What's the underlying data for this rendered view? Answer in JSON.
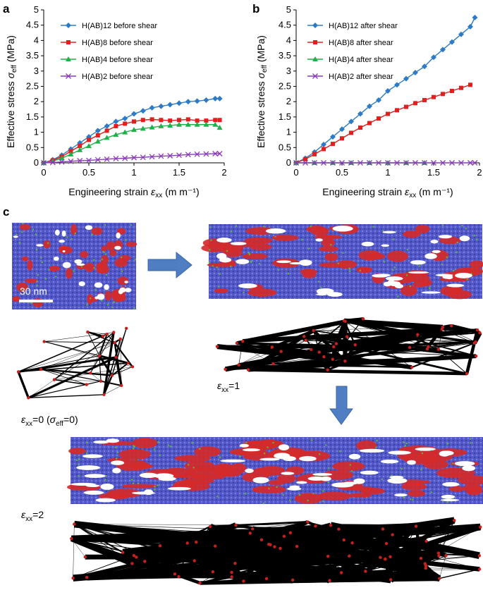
{
  "chart_data": [
    {
      "type": "line",
      "panel_label": "a",
      "xlabel": "Engineering strain",
      "xlabel_symbol": "ε",
      "xlabel_sub": "xx",
      "xlabel_unit": "(m m⁻¹)",
      "ylabel": "Effective stress",
      "ylabel_symbol": "σ",
      "ylabel_sub": "eff",
      "ylabel_unit": "(MPa)",
      "xlim": [
        0,
        2
      ],
      "ylim": [
        0,
        5
      ],
      "xticks": [
        "0",
        "0.5",
        "1",
        "1.5",
        "2"
      ],
      "yticks": [
        "0",
        "0.5",
        "1",
        "1.5",
        "2",
        "2.5",
        "3",
        "3.5",
        "4",
        "4.5",
        "5"
      ],
      "legend_position": "top-left",
      "series": [
        {
          "name": "H(AB)12 before shear",
          "color": "#2d7bc4",
          "marker": "diamond",
          "x": [
            0,
            0.1,
            0.2,
            0.3,
            0.4,
            0.5,
            0.6,
            0.7,
            0.8,
            0.9,
            1.0,
            1.1,
            1.2,
            1.3,
            1.4,
            1.5,
            1.6,
            1.7,
            1.8,
            1.9,
            1.95
          ],
          "y": [
            0,
            0.1,
            0.25,
            0.45,
            0.65,
            0.85,
            1.05,
            1.2,
            1.35,
            1.45,
            1.6,
            1.7,
            1.8,
            1.85,
            1.9,
            1.95,
            2.0,
            2.02,
            2.05,
            2.1,
            2.1
          ]
        },
        {
          "name": "H(AB)8 before shear",
          "color": "#e0201f",
          "marker": "square",
          "x": [
            0,
            0.1,
            0.2,
            0.3,
            0.4,
            0.5,
            0.6,
            0.7,
            0.8,
            0.9,
            1.0,
            1.1,
            1.2,
            1.3,
            1.4,
            1.5,
            1.6,
            1.7,
            1.8,
            1.9,
            1.95
          ],
          "y": [
            0,
            0.08,
            0.2,
            0.38,
            0.55,
            0.75,
            0.9,
            1.05,
            1.2,
            1.28,
            1.35,
            1.4,
            1.42,
            1.4,
            1.38,
            1.4,
            1.42,
            1.38,
            1.38,
            1.4,
            1.4
          ]
        },
        {
          "name": "H(AB)4 before shear",
          "color": "#1fb04a",
          "marker": "triangle",
          "x": [
            0,
            0.1,
            0.2,
            0.3,
            0.4,
            0.5,
            0.6,
            0.7,
            0.8,
            0.9,
            1.0,
            1.1,
            1.2,
            1.3,
            1.4,
            1.5,
            1.6,
            1.7,
            1.8,
            1.9,
            1.95
          ],
          "y": [
            0,
            0.05,
            0.15,
            0.28,
            0.42,
            0.55,
            0.7,
            0.82,
            0.92,
            1.0,
            1.08,
            1.12,
            1.16,
            1.2,
            1.22,
            1.25,
            1.25,
            1.25,
            1.25,
            1.25,
            1.15
          ]
        },
        {
          "name": "H(AB)2 before shear",
          "color": "#8a3ab9",
          "marker": "x",
          "x": [
            0,
            0.1,
            0.2,
            0.3,
            0.4,
            0.5,
            0.6,
            0.7,
            0.8,
            0.9,
            1.0,
            1.1,
            1.2,
            1.3,
            1.4,
            1.5,
            1.6,
            1.7,
            1.8,
            1.9,
            1.95
          ],
          "y": [
            0,
            0.01,
            0.03,
            0.05,
            0.07,
            0.08,
            0.1,
            0.12,
            0.14,
            0.15,
            0.17,
            0.18,
            0.2,
            0.22,
            0.23,
            0.25,
            0.27,
            0.28,
            0.29,
            0.3,
            0.3
          ]
        }
      ]
    },
    {
      "type": "line",
      "panel_label": "b",
      "xlabel": "Engineering strain",
      "xlabel_symbol": "ε",
      "xlabel_sub": "xx",
      "xlabel_unit": "(m m⁻¹)",
      "ylabel": "Effective stress",
      "ylabel_symbol": "σ",
      "ylabel_sub": "eff",
      "ylabel_unit": "(MPa)",
      "xlim": [
        0,
        2
      ],
      "ylim": [
        0,
        5
      ],
      "xticks": [
        "0",
        "0.5",
        "1",
        "1.5",
        "2"
      ],
      "yticks": [
        "0",
        "0.5",
        "1",
        "1.5",
        "2",
        "2.5",
        "3",
        "3.5",
        "4",
        "4.5",
        "5"
      ],
      "legend_position": "top-left",
      "series": [
        {
          "name": "H(AB)12 after shear",
          "color": "#2d7bc4",
          "marker": "diamond",
          "x": [
            0,
            0.1,
            0.2,
            0.3,
            0.4,
            0.5,
            0.6,
            0.7,
            0.8,
            0.9,
            1.0,
            1.1,
            1.2,
            1.3,
            1.4,
            1.5,
            1.6,
            1.7,
            1.8,
            1.9,
            1.95
          ],
          "y": [
            0,
            0.15,
            0.35,
            0.6,
            0.85,
            1.1,
            1.35,
            1.6,
            1.85,
            2.05,
            2.35,
            2.55,
            2.75,
            2.95,
            3.15,
            3.45,
            3.7,
            3.95,
            4.2,
            4.45,
            4.75
          ]
        },
        {
          "name": "H(AB)8 after shear",
          "color": "#e0201f",
          "marker": "square",
          "x": [
            0,
            0.1,
            0.2,
            0.3,
            0.4,
            0.5,
            0.6,
            0.7,
            0.8,
            0.9,
            1.0,
            1.1,
            1.2,
            1.3,
            1.4,
            1.5,
            1.6,
            1.7,
            1.8,
            1.9
          ],
          "y": [
            0,
            0.12,
            0.28,
            0.45,
            0.62,
            0.8,
            0.98,
            1.15,
            1.3,
            1.45,
            1.6,
            1.72,
            1.83,
            1.95,
            2.05,
            2.15,
            2.25,
            2.35,
            2.45,
            2.55
          ]
        },
        {
          "name": "H(AB)4 after shear",
          "color": "#1fb04a",
          "marker": "triangle",
          "x": [
            0,
            0.2,
            0.4,
            0.6,
            0.8,
            1.0,
            1.2,
            1.4
          ],
          "y": [
            0,
            0,
            0,
            0,
            0,
            0,
            0,
            0
          ]
        },
        {
          "name": "H(AB)2 after shear",
          "color": "#8a3ab9",
          "marker": "x",
          "x": [
            0,
            0.1,
            0.2,
            0.3,
            0.4,
            0.5,
            0.6,
            0.7,
            0.8,
            0.9,
            1.0,
            1.1,
            1.2,
            1.3,
            1.4,
            1.5,
            1.6,
            1.7,
            1.8,
            1.9,
            1.95
          ],
          "y": [
            0,
            0,
            0,
            0,
            0,
            0,
            0,
            0,
            0,
            0,
            0,
            0,
            0,
            0,
            0,
            0,
            0,
            0,
            0,
            0,
            0
          ]
        }
      ]
    }
  ],
  "panel_c": {
    "label": "c",
    "scale_bar_label": "30 nm",
    "caption_0_prefix": "ε",
    "caption_0_sub": "xx",
    "caption_0_value": "=0 (",
    "caption_0_sigma": "σ",
    "caption_0_sigma_sub": "eff",
    "caption_0_end": "=0)",
    "caption_1_prefix": "ε",
    "caption_1_sub": "xx",
    "caption_1_value": "=1",
    "caption_2_prefix": "ε",
    "caption_2_sub": "xx",
    "caption_2_value": "=2",
    "colors": {
      "polymer": "#4a4fc8",
      "domain": "#d42a2a",
      "additive": "#5cb83a",
      "network": "#000000",
      "node": "#c8201c",
      "arrow": "#4f7fc2"
    }
  }
}
